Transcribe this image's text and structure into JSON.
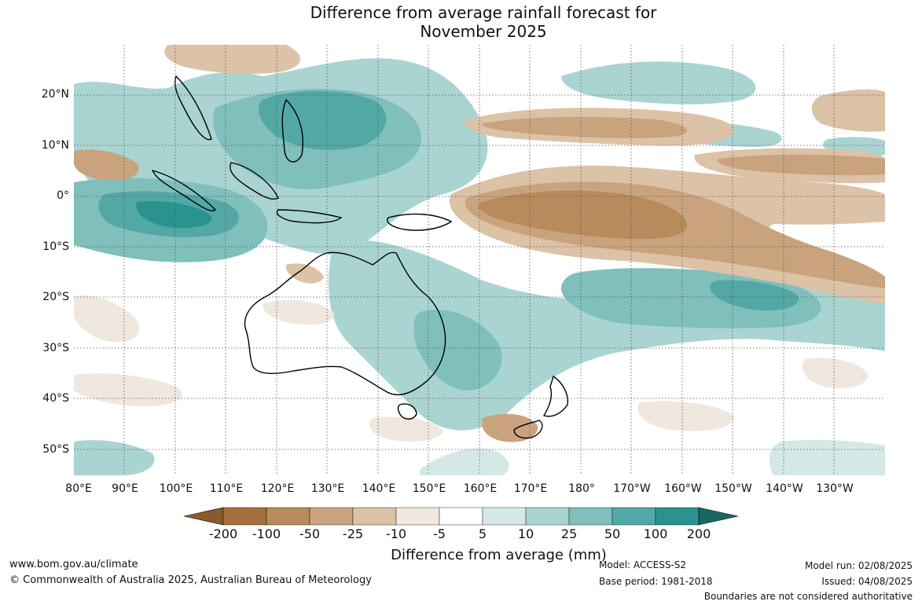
{
  "title": {
    "line1": "Difference from average rainfall forecast for",
    "line2": "November 2025"
  },
  "map": {
    "lat_labels": [
      "20°N",
      "10°N",
      "0°",
      "10°S",
      "20°S",
      "30°S",
      "40°S",
      "50°S"
    ],
    "lon_labels": [
      "80°E",
      "90°E",
      "100°E",
      "110°E",
      "120°E",
      "130°E",
      "140°E",
      "150°E",
      "160°E",
      "170°E",
      "180°",
      "170°W",
      "160°W",
      "150°W",
      "140°W",
      "130°W"
    ]
  },
  "colorbar": {
    "ticks": [
      "-200",
      "-100",
      "-50",
      "-25",
      "-10",
      "-5",
      "5",
      "10",
      "25",
      "50",
      "100",
      "200"
    ],
    "colors": [
      "#a46f3c",
      "#b88a5c",
      "#c9a37d",
      "#dcc2a6",
      "#f0e7df",
      "#ffffff",
      "#d4e9e7",
      "#a9d4d1",
      "#7fbfbc",
      "#52a8a5",
      "#2a938f",
      "#1f7a77"
    ],
    "title": "Difference from average (mm)"
  },
  "footer": {
    "website": "www.bom.gov.au/climate",
    "copyright": "© Commonwealth of Australia 2025, Australian Bureau of Meteorology",
    "model": "Model: ACCESS-S2",
    "base_period": "Base period: 1981-2018",
    "model_run": "Model run: 02/08/2025",
    "issued": "Issued: 04/08/2025",
    "disclaimer": "Boundaries are not considered authoritative"
  }
}
